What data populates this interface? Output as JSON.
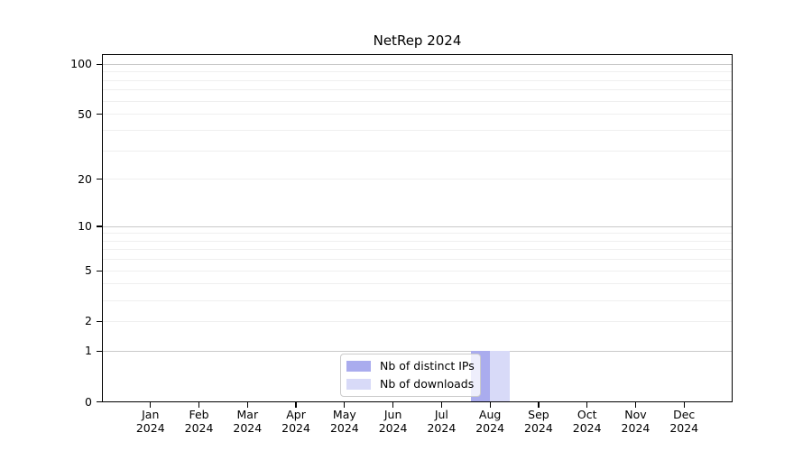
{
  "title": "NetRep 2024",
  "legend": {
    "items": [
      {
        "label": "Nb of distinct IPs",
        "color": "#aaacee"
      },
      {
        "label": "Nb of downloads",
        "color": "#d8daf8"
      }
    ]
  },
  "colors": {
    "bar_distinct_ips": "#aaacee",
    "bar_downloads": "#d8daf8",
    "grid_major": "#c9c9c9",
    "grid_minor": "#efefef",
    "axis": "#000000",
    "background": "#ffffff"
  },
  "chart_data": {
    "type": "bar",
    "title": "NetRep 2024",
    "categories": [
      "Jan",
      "Feb",
      "Mar",
      "Apr",
      "May",
      "Jun",
      "Jul",
      "Aug",
      "Sep",
      "Oct",
      "Nov",
      "Dec"
    ],
    "year_suffix": "2024",
    "series": [
      {
        "name": "Nb of distinct IPs",
        "color": "#aaacee",
        "values": [
          0,
          0,
          0,
          0,
          0,
          0,
          0,
          1,
          0,
          0,
          0,
          0
        ]
      },
      {
        "name": "Nb of downloads",
        "color": "#d8daf8",
        "values": [
          0,
          0,
          0,
          0,
          0,
          0,
          0,
          1,
          0,
          0,
          0,
          0
        ]
      }
    ],
    "yscale": "log1p",
    "yticks": [
      0,
      1,
      2,
      5,
      10,
      20,
      50,
      100
    ],
    "ytick_labels": [
      "0",
      "1",
      "2",
      "5",
      "10",
      "20",
      "50",
      "100"
    ],
    "ylim": [
      0,
      115
    ],
    "grid": true,
    "grid_major_at": [
      1,
      10,
      100
    ],
    "legend_position": "lower center, inside axes"
  }
}
